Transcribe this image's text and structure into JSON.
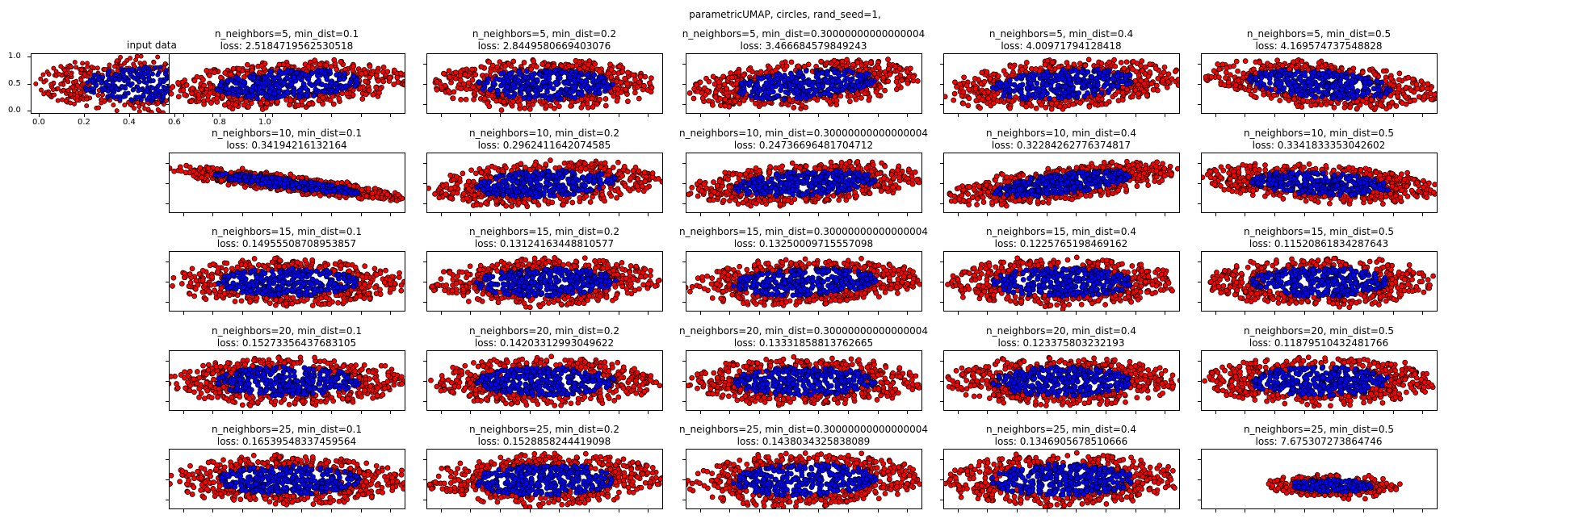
{
  "figure": {
    "suptitle": "parametricUMAP, circles, rand_seed=1,"
  },
  "colors": {
    "outer": "#ff0000",
    "inner": "#0000ff",
    "edge": "#000000"
  },
  "chart_data": [
    {
      "type": "scatter",
      "title": "input data",
      "xlim": [
        0,
        1.0
      ],
      "ylim": [
        0,
        1.0
      ],
      "xticks": [
        "0.0",
        "0.2",
        "0.4",
        "0.6",
        "0.8",
        "1.0"
      ],
      "yticks": [
        "0.0",
        "0.5",
        "1.0"
      ]
    },
    {
      "type": "scatter",
      "title": "n_neighbors=5, min_dist=0.1",
      "loss": "loss: 2.5184719562530518"
    },
    {
      "type": "scatter",
      "title": "n_neighbors=5, min_dist=0.2",
      "loss": "loss: 2.8449580669403076"
    },
    {
      "type": "scatter",
      "title": "n_neighbors=5, min_dist=0.30000000000000004",
      "loss": "loss: 3.466684579849243"
    },
    {
      "type": "scatter",
      "title": "n_neighbors=5, min_dist=0.4",
      "loss": "loss: 4.00971794128418"
    },
    {
      "type": "scatter",
      "title": "n_neighbors=5, min_dist=0.5",
      "loss": "loss: 4.169574737548828"
    },
    {
      "type": "scatter",
      "title": "n_neighbors=10, min_dist=0.1",
      "loss": "loss: 0.34194216132164"
    },
    {
      "type": "scatter",
      "title": "n_neighbors=10, min_dist=0.2",
      "loss": "loss: 0.2962411642074585"
    },
    {
      "type": "scatter",
      "title": "n_neighbors=10, min_dist=0.30000000000000004",
      "loss": "loss: 0.24736696481704712"
    },
    {
      "type": "scatter",
      "title": "n_neighbors=10, min_dist=0.4",
      "loss": "loss: 0.32284262776374817"
    },
    {
      "type": "scatter",
      "title": "n_neighbors=10, min_dist=0.5",
      "loss": "loss: 0.3341833353042602"
    },
    {
      "type": "scatter",
      "title": "n_neighbors=15, min_dist=0.1",
      "loss": "loss: 0.14955508708953857"
    },
    {
      "type": "scatter",
      "title": "n_neighbors=15, min_dist=0.2",
      "loss": "loss: 0.13124163448810577"
    },
    {
      "type": "scatter",
      "title": "n_neighbors=15, min_dist=0.30000000000000004",
      "loss": "loss: 0.13250009715557098"
    },
    {
      "type": "scatter",
      "title": "n_neighbors=15, min_dist=0.4",
      "loss": "loss: 0.1225765198469162"
    },
    {
      "type": "scatter",
      "title": "n_neighbors=15, min_dist=0.5",
      "loss": "loss: 0.11520861834287643"
    },
    {
      "type": "scatter",
      "title": "n_neighbors=20, min_dist=0.1",
      "loss": "loss: 0.15273356437683105"
    },
    {
      "type": "scatter",
      "title": "n_neighbors=20, min_dist=0.2",
      "loss": "loss: 0.14203312993049622"
    },
    {
      "type": "scatter",
      "title": "n_neighbors=20, min_dist=0.30000000000000004",
      "loss": "loss: 0.13331858813762665"
    },
    {
      "type": "scatter",
      "title": "n_neighbors=20, min_dist=0.4",
      "loss": "loss: 0.123375803232193"
    },
    {
      "type": "scatter",
      "title": "n_neighbors=20, min_dist=0.5",
      "loss": "loss: 0.11879510432481766"
    },
    {
      "type": "scatter",
      "title": "n_neighbors=25, min_dist=0.1",
      "loss": "loss: 0.16539548337459564"
    },
    {
      "type": "scatter",
      "title": "n_neighbors=25, min_dist=0.2",
      "loss": "loss: 0.1528858244419098"
    },
    {
      "type": "scatter",
      "title": "n_neighbors=25, min_dist=0.30000000000000004",
      "loss": "loss: 0.1438034325838089"
    },
    {
      "type": "scatter",
      "title": "n_neighbors=25, min_dist=0.4",
      "loss": "loss: 0.1346905678510666"
    },
    {
      "type": "scatter",
      "title": "n_neighbors=25, min_dist=0.5",
      "loss": "loss: 7.675307273864746"
    }
  ]
}
